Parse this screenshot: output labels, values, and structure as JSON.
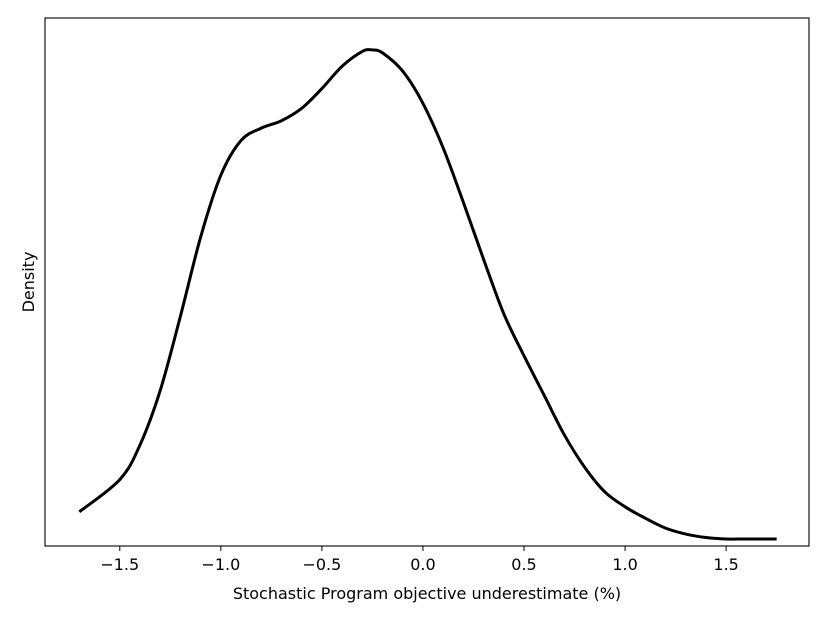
{
  "chart_data": {
    "type": "line",
    "title": "",
    "xlabel": "Stochastic Program objective underestimate (%)",
    "ylabel": "Density",
    "xlim": [
      -1.87,
      1.91
    ],
    "ylim": [
      0,
      1.0
    ],
    "xticks": [
      -1.5,
      -1.0,
      -0.5,
      0.0,
      0.5,
      1.0,
      1.5
    ],
    "xtick_labels": [
      "−1.5",
      "−1.0",
      "−0.5",
      "0.0",
      "0.5",
      "1.0",
      "1.5"
    ],
    "y_ticks_shown": false,
    "grid": false,
    "legend": "none",
    "series": [
      {
        "color": "#000000",
        "x": [
          -1.7,
          -1.5,
          -1.4,
          -1.3,
          -1.2,
          -1.1,
          -1.0,
          -0.9,
          -0.8,
          -0.7,
          -0.6,
          -0.5,
          -0.4,
          -0.3,
          -0.25,
          -0.2,
          -0.1,
          0.0,
          0.1,
          0.2,
          0.3,
          0.4,
          0.5,
          0.6,
          0.7,
          0.8,
          0.9,
          1.0,
          1.1,
          1.2,
          1.3,
          1.4,
          1.5,
          1.6,
          1.75
        ],
        "y": [
          0.055,
          0.12,
          0.19,
          0.3,
          0.45,
          0.61,
          0.735,
          0.805,
          0.83,
          0.845,
          0.87,
          0.91,
          0.955,
          0.985,
          0.988,
          0.982,
          0.945,
          0.88,
          0.79,
          0.68,
          0.565,
          0.455,
          0.37,
          0.29,
          0.21,
          0.145,
          0.095,
          0.065,
          0.042,
          0.022,
          0.01,
          0.003,
          0.0,
          0.0,
          0.0
        ]
      }
    ]
  }
}
